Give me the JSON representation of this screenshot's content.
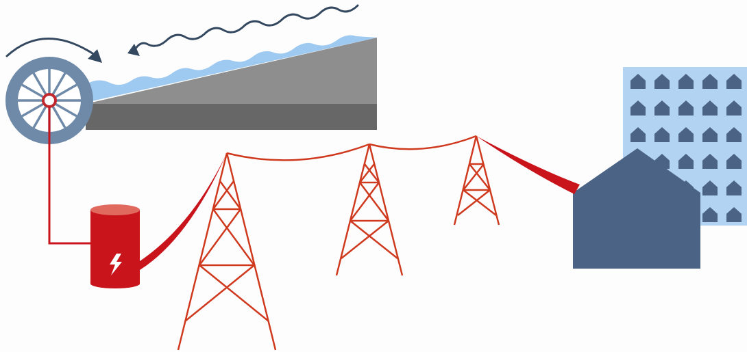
{
  "diagram": {
    "kind": "hydroelectric power generation and distribution illustration",
    "components": [
      "water-wheel",
      "river-channel",
      "flowing-water",
      "generator",
      "transmission-towers",
      "power-lines",
      "house",
      "apartment-building"
    ],
    "icons": {
      "generator": "lightning-bolt-icon",
      "rotation": "curved-arrow-icon",
      "flow": "wavy-arrow-icon",
      "homes": "house-icon"
    },
    "counts": {
      "towers": 3,
      "building_windows": 30
    }
  },
  "colors": {
    "background": "#fdfdfd",
    "wheel": "#6f8aa8",
    "wheel_inner": "#ffffff",
    "hub": "#c0282d",
    "water": "#9ec9f0",
    "bank_light": "#8e8e8e",
    "bank_dark": "#676767",
    "arrow": "#34485f",
    "generator": "#c9141b",
    "generator_top": "#e06a5e",
    "power_line": "#cf3a1f",
    "house": "#4b6384",
    "building": "#b3d3f2",
    "building_window": "#4b6384"
  }
}
